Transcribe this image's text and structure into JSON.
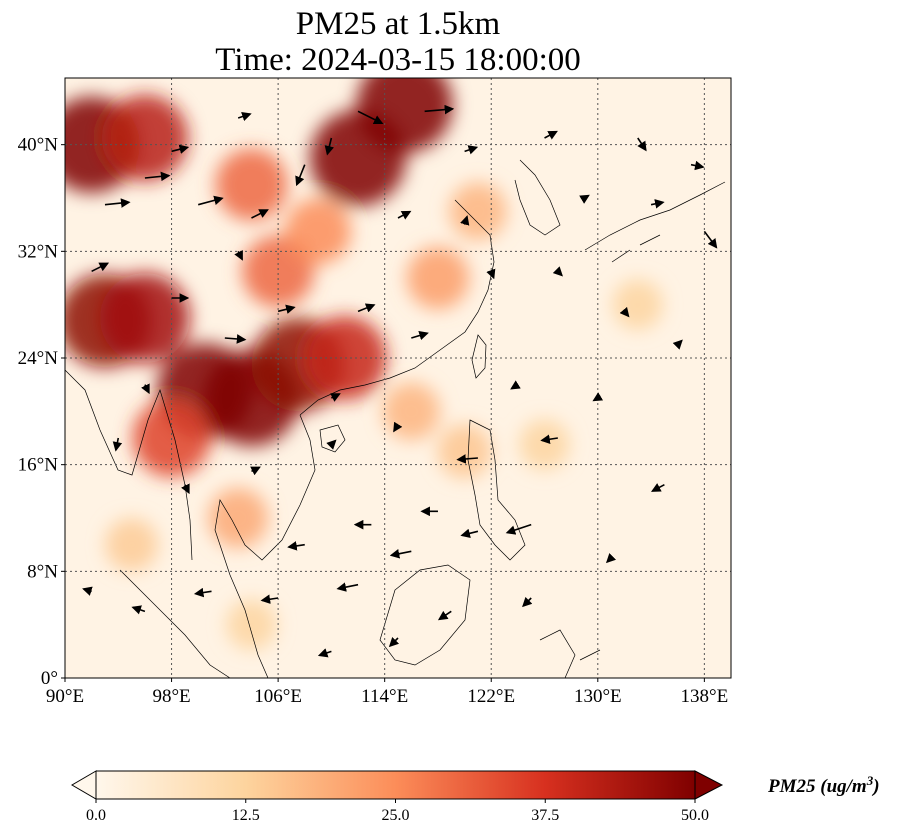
{
  "title": {
    "line1": "PM25 at 1.5km",
    "line2": "Time: 2024-03-15 18:00:00"
  },
  "map": {
    "projection": "PlateCarree",
    "extent": {
      "lon_min": 90,
      "lon_max": 140,
      "lat_min": 0,
      "lat_max": 45
    },
    "x_ticks": [
      {
        "lon": 90,
        "label": "90°E"
      },
      {
        "lon": 98,
        "label": "98°E"
      },
      {
        "lon": 106,
        "label": "106°E"
      },
      {
        "lon": 114,
        "label": "114°E"
      },
      {
        "lon": 122,
        "label": "122°E"
      },
      {
        "lon": 130,
        "label": "130°E"
      },
      {
        "lon": 138,
        "label": "138°E"
      }
    ],
    "y_ticks": [
      {
        "lat": 0,
        "label": "0°"
      },
      {
        "lat": 8,
        "label": "8°N"
      },
      {
        "lat": 16,
        "label": "16°N"
      },
      {
        "lat": 24,
        "label": "24°N"
      },
      {
        "lat": 32,
        "label": "32°N"
      },
      {
        "lat": 40,
        "label": "40°N"
      }
    ],
    "gridlines": true,
    "field": "PM2.5 concentration with wind vectors",
    "hotspots": [
      {
        "lon": 100.5,
        "lat": 21.5,
        "value": 50
      },
      {
        "lon": 104,
        "lat": 21.0,
        "value": 50
      },
      {
        "lon": 107.5,
        "lat": 23.5,
        "value": 48
      },
      {
        "lon": 111,
        "lat": 24.0,
        "value": 40
      },
      {
        "lon": 93,
        "lat": 26.8,
        "value": 48
      },
      {
        "lon": 96,
        "lat": 27.0,
        "value": 45
      },
      {
        "lon": 112,
        "lat": 39.0,
        "value": 50
      },
      {
        "lon": 115.5,
        "lat": 43.0,
        "value": 50
      },
      {
        "lon": 92,
        "lat": 40.0,
        "value": 50
      },
      {
        "lon": 96,
        "lat": 40.5,
        "value": 42
      },
      {
        "lon": 104,
        "lat": 37.0,
        "value": 30
      },
      {
        "lon": 106,
        "lat": 30.5,
        "value": 30
      },
      {
        "lon": 109,
        "lat": 33.5,
        "value": 25
      },
      {
        "lon": 98,
        "lat": 18.0,
        "value": 35
      },
      {
        "lon": 103,
        "lat": 12.0,
        "value": 20
      },
      {
        "lon": 118,
        "lat": 30.0,
        "value": 22
      },
      {
        "lon": 121,
        "lat": 35.0,
        "value": 18
      },
      {
        "lon": 116,
        "lat": 20.0,
        "value": 18
      },
      {
        "lon": 120,
        "lat": 17.0,
        "value": 15
      },
      {
        "lon": 126,
        "lat": 17.5,
        "value": 12
      },
      {
        "lon": 133,
        "lat": 28.0,
        "value": 12
      },
      {
        "lon": 95,
        "lat": 10.0,
        "value": 14
      },
      {
        "lon": 104,
        "lat": 4.0,
        "value": 12
      }
    ],
    "wind_vectors": [
      {
        "lon": 93,
        "lat": 35.5,
        "u": 3,
        "v": 0.3
      },
      {
        "lon": 96,
        "lat": 37.5,
        "u": 3,
        "v": 0.3
      },
      {
        "lon": 100,
        "lat": 35.5,
        "u": 3,
        "v": 0.8
      },
      {
        "lon": 104,
        "lat": 34.5,
        "u": 2,
        "v": 1
      },
      {
        "lon": 108,
        "lat": 38.5,
        "u": -1,
        "v": -2.5
      },
      {
        "lon": 112,
        "lat": 42.5,
        "u": 3,
        "v": -1.5
      },
      {
        "lon": 117,
        "lat": 42.5,
        "u": 3.5,
        "v": 0.3
      },
      {
        "lon": 110,
        "lat": 40.5,
        "u": -0.5,
        "v": -2
      },
      {
        "lon": 120,
        "lat": 39.5,
        "u": 1.5,
        "v": 0.5
      },
      {
        "lon": 126,
        "lat": 40.5,
        "u": 1.5,
        "v": 0.8
      },
      {
        "lon": 133,
        "lat": 40.5,
        "u": 1,
        "v": -1.5
      },
      {
        "lon": 137,
        "lat": 38.5,
        "u": 1.5,
        "v": -0.3
      },
      {
        "lon": 138,
        "lat": 33.5,
        "u": 1.5,
        "v": -2
      },
      {
        "lon": 92,
        "lat": 30.5,
        "u": 2,
        "v": 1
      },
      {
        "lon": 98,
        "lat": 28.5,
        "u": 2,
        "v": 0
      },
      {
        "lon": 102,
        "lat": 25.5,
        "u": 2.5,
        "v": -0.2
      },
      {
        "lon": 106,
        "lat": 27.5,
        "u": 2,
        "v": 0.5
      },
      {
        "lon": 112,
        "lat": 27.5,
        "u": 2,
        "v": 0.8
      },
      {
        "lon": 116,
        "lat": 25.5,
        "u": 2,
        "v": 0.6
      },
      {
        "lon": 122,
        "lat": 30.5,
        "u": 0.3,
        "v": -0.8
      },
      {
        "lon": 127,
        "lat": 30.5,
        "u": 0.5,
        "v": -0.5
      },
      {
        "lon": 132,
        "lat": 27.5,
        "u": 0.5,
        "v": -0.6
      },
      {
        "lon": 136,
        "lat": 25.0,
        "u": 0.5,
        "v": 0.5
      },
      {
        "lon": 124,
        "lat": 22.0,
        "u": -0.8,
        "v": -0.5
      },
      {
        "lon": 130,
        "lat": 21.0,
        "u": -0.5,
        "v": -0.3
      },
      {
        "lon": 127,
        "lat": 18.0,
        "u": -2,
        "v": -0.3
      },
      {
        "lon": 121,
        "lat": 16.5,
        "u": -2.5,
        "v": -0.2
      },
      {
        "lon": 135,
        "lat": 14.5,
        "u": -1.5,
        "v": -0.8
      },
      {
        "lon": 118,
        "lat": 12.5,
        "u": -2,
        "v": 0
      },
      {
        "lon": 113,
        "lat": 11.5,
        "u": -2,
        "v": 0
      },
      {
        "lon": 108,
        "lat": 10.0,
        "u": -2,
        "v": -0.3
      },
      {
        "lon": 116,
        "lat": 9.5,
        "u": -2.5,
        "v": -0.5
      },
      {
        "lon": 121,
        "lat": 11.0,
        "u": -2,
        "v": -0.5
      },
      {
        "lon": 125,
        "lat": 11.5,
        "u": -3,
        "v": -1
      },
      {
        "lon": 112,
        "lat": 7.0,
        "u": -2.5,
        "v": -0.5
      },
      {
        "lon": 106,
        "lat": 6.0,
        "u": -2,
        "v": -0.3
      },
      {
        "lon": 101,
        "lat": 6.5,
        "u": -2,
        "v": -0.3
      },
      {
        "lon": 96,
        "lat": 5.0,
        "u": -1.5,
        "v": 0.5
      },
      {
        "lon": 92,
        "lat": 6.5,
        "u": -1,
        "v": 0.3
      },
      {
        "lon": 119,
        "lat": 5.0,
        "u": -1.5,
        "v": -1
      },
      {
        "lon": 115,
        "lat": 3.0,
        "u": -1,
        "v": -1
      },
      {
        "lon": 110,
        "lat": 2.0,
        "u": -1.5,
        "v": -0.5
      },
      {
        "lon": 125,
        "lat": 6.0,
        "u": -1,
        "v": -1
      },
      {
        "lon": 131,
        "lat": 9.0,
        "u": -0.5,
        "v": -0.5
      },
      {
        "lon": 94,
        "lat": 18.0,
        "u": -0.3,
        "v": -1.5
      },
      {
        "lon": 99,
        "lat": 14.5,
        "u": 0.5,
        "v": -1
      },
      {
        "lon": 104,
        "lat": 15.5,
        "u": 1,
        "v": 0.5
      },
      {
        "lon": 110,
        "lat": 17.5,
        "u": 0.5,
        "v": 0.5
      },
      {
        "lon": 115,
        "lat": 19.0,
        "u": -0.5,
        "v": -0.8
      },
      {
        "lon": 96,
        "lat": 22.0,
        "u": 0.5,
        "v": -1
      },
      {
        "lon": 110,
        "lat": 21.0,
        "u": 1,
        "v": 0.5
      },
      {
        "lon": 103,
        "lat": 32.0,
        "u": 0.5,
        "v": -1
      },
      {
        "lon": 115,
        "lat": 34.5,
        "u": 1.5,
        "v": 0.8
      },
      {
        "lon": 120,
        "lat": 34.0,
        "u": 0.3,
        "v": 1
      },
      {
        "lon": 98,
        "lat": 39.5,
        "u": 2,
        "v": 0.5
      },
      {
        "lon": 103,
        "lat": 42.0,
        "u": 1.5,
        "v": 0.5
      },
      {
        "lon": 129,
        "lat": 36.0,
        "u": 0.5,
        "v": 0.3
      },
      {
        "lon": 134,
        "lat": 35.5,
        "u": 1.5,
        "v": 0.3
      }
    ]
  },
  "colorbar": {
    "cmap": "OrRd",
    "vmin": 0.0,
    "vmax": 50.0,
    "extend": "both",
    "ticks": [
      "0.0",
      "12.5",
      "25.0",
      "37.5",
      "50.0"
    ],
    "label_main": "PM25 (ug/m",
    "label_sup": "3",
    "label_close": ")"
  },
  "colors": {
    "ocean_base": "#fff3e4",
    "grid": "#555555",
    "coast": "#000000"
  }
}
